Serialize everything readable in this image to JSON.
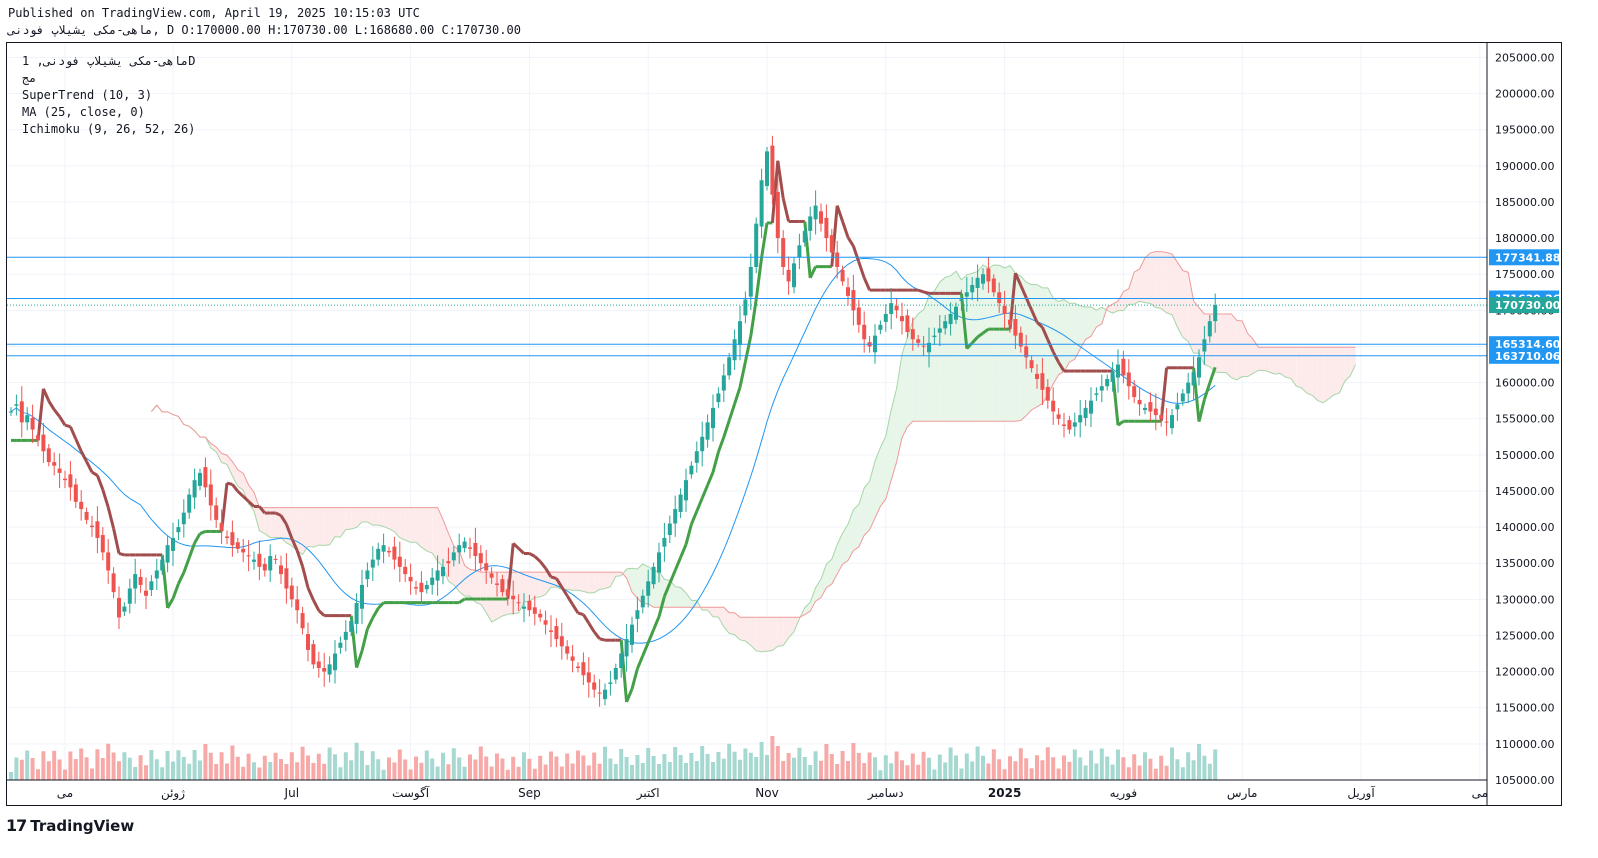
{
  "header": {
    "published": "Published on TradingView.com, April 19, 2025 10:15:03 UTC",
    "symbol_line": "ماهی-مکی یشیلاپ فودنی, D O:170000.00 H:170730.00 L:168680.00 C:170730.00"
  },
  "legend": {
    "line1": "ماهی-مکی یشیلاپ فودنی, 1D",
    "line2": "مج",
    "line3": "SuperTrend (10, 3)",
    "line4": "MA (25, close, 0)",
    "line5": "Ichimoku (9, 26, 52, 26)"
  },
  "brand": {
    "name": "TradingView",
    "logo_text": "17"
  },
  "colors": {
    "up": "#26a69a",
    "down": "#ef5350",
    "volume_up": "#a5d8d1",
    "volume_down": "#f7a9a8",
    "supertrend_up": "#43a047",
    "supertrend_down": "#a14d4d",
    "ma": "#2196f3",
    "cloud_green": "#e8f5e9",
    "cloud_red": "#fdebeb",
    "hline": "#2196f3"
  },
  "chart_data": {
    "type": "candlestick",
    "ylim": [
      105000,
      207000
    ],
    "y_ticks": [
      "205000.00",
      "200000.00",
      "195000.00",
      "190000.00",
      "185000.00",
      "180000.00",
      "175000.00",
      "170000.00",
      "165000.00",
      "160000.00",
      "155000.00",
      "150000.00",
      "145000.00",
      "140000.00",
      "135000.00",
      "130000.00",
      "125000.00",
      "120000.00",
      "115000.00",
      "110000.00",
      "105000.00"
    ],
    "x_labels": [
      {
        "label": "می",
        "i": 10
      },
      {
        "label": "ژوئن",
        "i": 30
      },
      {
        "label": "Jul",
        "i": 52
      },
      {
        "label": "آگوست",
        "i": 74
      },
      {
        "label": "Sep",
        "i": 96
      },
      {
        "label": "اکتبر",
        "i": 118
      },
      {
        "label": "Nov",
        "i": 140
      },
      {
        "label": "دسامبر",
        "i": 162
      },
      {
        "label": "2025",
        "i": 184
      },
      {
        "label": "فوریه",
        "i": 206
      },
      {
        "label": "مارس",
        "i": 228
      },
      {
        "label": "آوریل",
        "i": 250
      },
      {
        "label": "می",
        "i": 272
      }
    ],
    "price_levels": [
      {
        "value": 177341.88,
        "label": "177341.88"
      },
      {
        "value": 171639.26,
        "label": "171639.26"
      },
      {
        "value": 165314.6,
        "label": "165314.60"
      },
      {
        "value": 163710.06,
        "label": "163710.06"
      }
    ],
    "last_price": {
      "value": 170730.0,
      "label": "170730.00"
    },
    "closes": [
      156000,
      157000,
      154500,
      155500,
      153500,
      152000,
      150500,
      149000,
      148500,
      147500,
      146500,
      145500,
      143500,
      142500,
      141000,
      140000,
      138500,
      136500,
      134000,
      131000,
      127500,
      129000,
      131500,
      133500,
      132000,
      130500,
      132500,
      134000,
      135500,
      137500,
      138500,
      140000,
      142000,
      144500,
      146500,
      147500,
      145500,
      143000,
      141000,
      139500,
      138500,
      137500,
      137000,
      136500,
      136000,
      135500,
      134500,
      134000,
      136000,
      135500,
      133500,
      131500,
      130000,
      128500,
      126000,
      123000,
      121000,
      120500,
      120000,
      121000,
      122500,
      124000,
      125500,
      127000,
      129500,
      132000,
      134000,
      135500,
      137000,
      137500,
      136500,
      135500,
      134500,
      133500,
      132500,
      131500,
      131000,
      132000,
      133000,
      134000,
      134500,
      135000,
      136500,
      137500,
      138000,
      137000,
      136000,
      135000,
      134000,
      133000,
      132000,
      131000,
      130500,
      130000,
      129500,
      129000,
      128500,
      128000,
      127500,
      126500,
      125500,
      124500,
      123500,
      122500,
      121500,
      120500,
      119500,
      118500,
      117500,
      117000,
      117500,
      118500,
      120500,
      122500,
      124500,
      126500,
      128500,
      130500,
      132500,
      134500,
      136500,
      138500,
      140500,
      142500,
      144500,
      146500,
      148500,
      150500,
      152500,
      154500,
      156500,
      158500,
      161000,
      163500,
      166000,
      168500,
      171500,
      176000,
      182000,
      188000,
      192000,
      186000,
      180000,
      176000,
      174000,
      176500,
      179000,
      181000,
      183000,
      184500,
      182000,
      180000,
      178000,
      176000,
      174000,
      172000,
      170000,
      168000,
      166000,
      165000,
      166500,
      168000,
      169500,
      171000,
      170000,
      168500,
      167000,
      166000,
      165500,
      165000,
      165500,
      166500,
      167500,
      168500,
      169500,
      170500,
      171500,
      172500,
      173500,
      174500,
      175000,
      174000,
      172500,
      171000,
      169500,
      168000,
      166500,
      165000,
      163500,
      162000,
      160500,
      159000,
      157500,
      156000,
      155000,
      154000,
      153500,
      154500,
      155500,
      156500,
      157500,
      158500,
      159500,
      160500,
      161500,
      162500,
      161000,
      159500,
      158000,
      157000,
      156500,
      156000,
      155500,
      155000,
      154500,
      155500,
      157000,
      158500,
      160000,
      161500,
      163500,
      166000,
      168500,
      170730
    ]
  }
}
